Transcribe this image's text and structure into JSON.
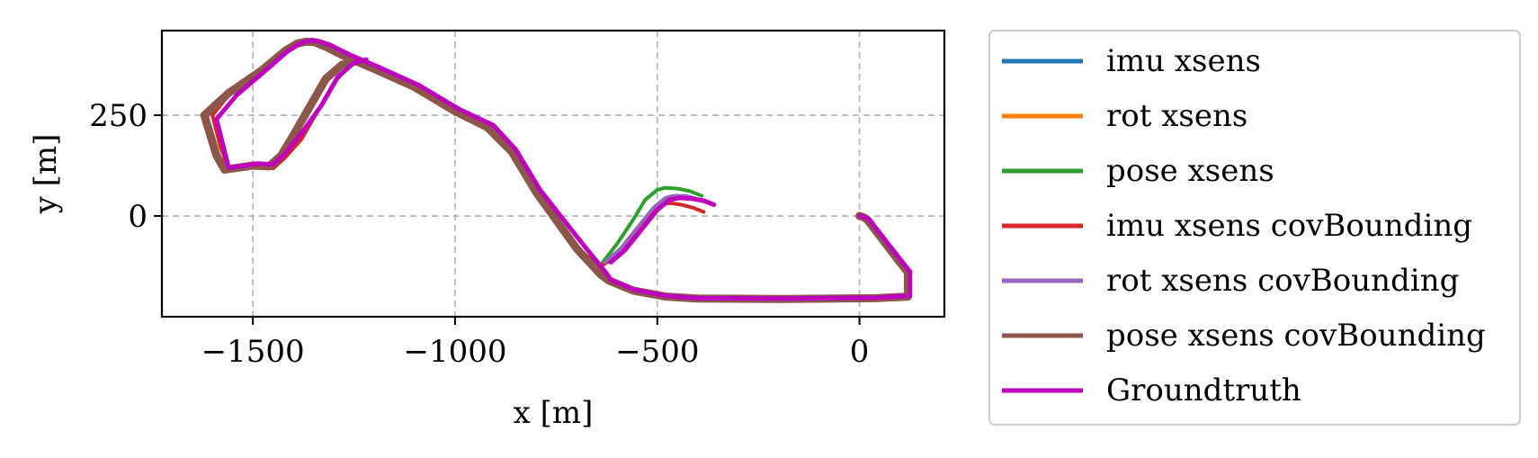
{
  "chart_data": {
    "type": "line",
    "xlabel": "x [m]",
    "ylabel": "y [m]",
    "xlim": [
      -1725,
      210
    ],
    "ylim": [
      -250,
      460
    ],
    "x_ticks": [
      -1500,
      -1000,
      -500,
      0
    ],
    "x_tick_labels": [
      "−1500",
      "−1000",
      "−500",
      "0"
    ],
    "y_ticks": [
      0,
      250
    ],
    "y_tick_labels": [
      "0",
      "250"
    ],
    "grid": true,
    "legend_position": "outside-right",
    "series": [
      {
        "name": "imu xsens",
        "color": "#1f77b4",
        "x": [
          0,
          10,
          20,
          100,
          120,
          120,
          40,
          -200,
          -400,
          -480,
          -560,
          -620,
          -640,
          -700,
          -800,
          -860,
          -920,
          -1000,
          -1100,
          -1200,
          -1270,
          -1320,
          -1350,
          -1370,
          -1390,
          -1420,
          -1480,
          -1560,
          -1620,
          -1590,
          -1570,
          -1550,
          -1500,
          -1460,
          -1430,
          -1400,
          -1360,
          -1320,
          -1280,
          -1240
        ],
        "y": [
          0,
          -3,
          -10,
          -115,
          -140,
          -200,
          -204,
          -206,
          -205,
          -200,
          -185,
          -160,
          -145,
          -80,
          60,
          160,
          220,
          260,
          320,
          365,
          395,
          420,
          432,
          432,
          428,
          410,
          360,
          305,
          250,
          150,
          115,
          118,
          125,
          123,
          150,
          200,
          270,
          340,
          375,
          385
        ]
      },
      {
        "name": "rot xsens",
        "color": "#ff7f0e",
        "x": [
          0,
          10,
          20,
          100,
          120,
          120,
          40,
          -200,
          -400,
          -480,
          -560,
          -620,
          -640,
          -700,
          -800,
          -860,
          -920,
          -1000,
          -1100,
          -1200,
          -1270,
          -1320,
          -1350,
          -1370,
          -1390,
          -1420,
          -1480,
          -1560,
          -1620,
          -1590,
          -1570,
          -1550,
          -1500,
          -1460,
          -1430,
          -1400,
          -1360,
          -1320,
          -1280,
          -1240
        ],
        "y": [
          0,
          -3,
          -10,
          -115,
          -140,
          -200,
          -204,
          -206,
          -205,
          -200,
          -185,
          -160,
          -145,
          -80,
          60,
          160,
          220,
          260,
          320,
          365,
          395,
          420,
          432,
          432,
          428,
          410,
          360,
          305,
          250,
          150,
          115,
          118,
          125,
          123,
          150,
          200,
          270,
          340,
          375,
          385
        ]
      },
      {
        "name": "pose xsens",
        "color": "#2ca02c",
        "x": [
          -390,
          -420,
          -450,
          -480,
          -500,
          -530,
          -560,
          -600,
          -635
        ],
        "y": [
          50,
          62,
          68,
          70,
          65,
          40,
          -10,
          -70,
          -115
        ]
      },
      {
        "name": "imu xsens covBounding",
        "color": "#d62728",
        "x": [
          -385,
          -410,
          -440,
          -470,
          -490,
          -520,
          -560,
          -600,
          -640,
          -700,
          -800,
          -860,
          -920,
          -1000,
          -1100,
          -1200,
          -1270,
          -1320,
          -1350,
          -1370,
          -1390,
          -1420,
          -1480,
          -1560,
          -1600,
          -1580,
          -1560,
          -1530,
          -1480,
          -1450,
          -1420,
          -1380,
          -1340,
          -1300,
          -1260
        ],
        "y": [
          10,
          20,
          28,
          32,
          28,
          0,
          -50,
          -100,
          -125,
          -80,
          60,
          160,
          220,
          260,
          320,
          365,
          395,
          420,
          432,
          432,
          428,
          410,
          360,
          300,
          250,
          170,
          120,
          118,
          125,
          118,
          145,
          190,
          260,
          330,
          375
        ]
      },
      {
        "name": "rot xsens covBounding",
        "color": "#9467bd",
        "x": [
          -375,
          -400,
          -430,
          -460,
          -480,
          -510,
          -550,
          -590,
          -630
        ],
        "y": [
          32,
          42,
          50,
          50,
          45,
          20,
          -30,
          -80,
          -115
        ]
      },
      {
        "name": "pose xsens covBounding",
        "color": "#8c564b",
        "x": [
          0,
          10,
          20,
          100,
          120,
          120,
          40,
          -200,
          -400,
          -480,
          -560,
          -620,
          -640,
          -700,
          -800,
          -860,
          -920,
          -1000,
          -1100,
          -1200,
          -1270,
          -1320,
          -1350,
          -1370,
          -1390,
          -1420,
          -1480,
          -1560,
          -1620,
          -1590,
          -1570,
          -1550,
          -1500,
          -1460,
          -1430,
          -1400,
          -1360,
          -1320,
          -1280,
          -1240
        ],
        "y": [
          0,
          -3,
          -10,
          -115,
          -140,
          -200,
          -204,
          -206,
          -205,
          -200,
          -185,
          -160,
          -145,
          -80,
          60,
          160,
          220,
          260,
          320,
          365,
          395,
          420,
          432,
          432,
          428,
          410,
          360,
          305,
          250,
          150,
          115,
          118,
          125,
          123,
          150,
          200,
          270,
          340,
          375,
          385
        ]
      },
      {
        "name": "Groundtruth",
        "color": "#bf00bf",
        "x": [
          0,
          12,
          25,
          105,
          125,
          125,
          40,
          -200,
          -400,
          -480,
          -560,
          -615,
          -625,
          -680,
          -790,
          -850,
          -905,
          -990,
          -1090,
          -1190,
          -1260,
          -1310,
          -1340,
          -1360,
          -1380,
          -1410,
          -1470,
          -1540,
          -1590,
          -1570,
          -1560,
          -1540,
          -1490,
          -1450,
          -1420,
          -1380,
          -1330,
          -1290,
          -1250,
          -1220
        ],
        "y": [
          0,
          -3,
          -10,
          -113,
          -138,
          -198,
          -203,
          -205,
          -204,
          -198,
          -182,
          -158,
          -143,
          -75,
          65,
          165,
          225,
          265,
          325,
          370,
          400,
          425,
          435,
          435,
          430,
          412,
          360,
          300,
          240,
          160,
          120,
          122,
          130,
          128,
          155,
          205,
          275,
          345,
          380,
          388
        ]
      },
      {
        "name": "",
        "color": "#bf00bf",
        "x": [
          -360,
          -385,
          -415,
          -445,
          -470,
          -500,
          -540,
          -580,
          -615
        ],
        "y": [
          28,
          38,
          43,
          45,
          40,
          15,
          -35,
          -85,
          -115
        ]
      }
    ]
  }
}
